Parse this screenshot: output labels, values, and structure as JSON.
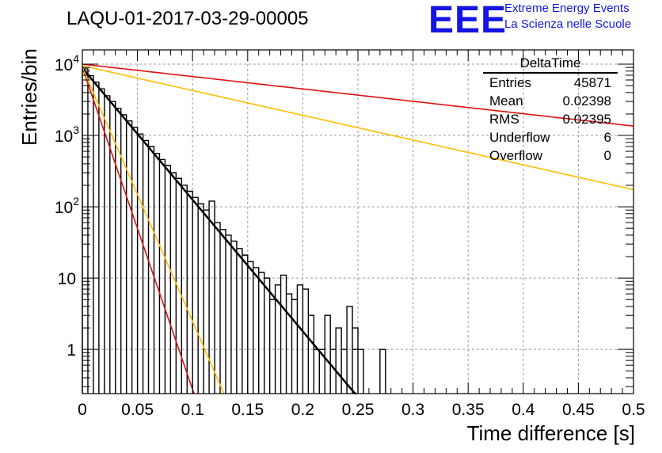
{
  "title": "LAQU-01-2017-03-29-00005",
  "logo": {
    "mark": "EEE",
    "line1": "Extreme Energy Events",
    "line2": "La Scienza nelle Scuole",
    "color": "#1414e6"
  },
  "stats_box": {
    "title": "DeltaTime",
    "rows": [
      {
        "label": "Entries",
        "value": "45871"
      },
      {
        "label": "Mean",
        "value": "0.02398"
      },
      {
        "label": "RMS",
        "value": "0.02395"
      },
      {
        "label": "Underflow",
        "value": "6"
      },
      {
        "label": "Overflow",
        "value": "0"
      }
    ]
  },
  "chart_data": {
    "type": "histogram",
    "xlabel": "Time difference [s]",
    "ylabel": "Entries/bin",
    "xlim": [
      0,
      0.5
    ],
    "ylim_log10": [
      -0.62,
      4.2
    ],
    "yscale": "log",
    "grid": true,
    "x_ticks": [
      "0",
      "0.05",
      "0.1",
      "0.15",
      "0.2",
      "0.25",
      "0.3",
      "0.35",
      "0.4",
      "0.45",
      "0.5"
    ],
    "y_ticks": [
      {
        "value": 10000,
        "base": "10",
        "exp": "4"
      },
      {
        "value": 1000,
        "base": "10",
        "exp": "3"
      },
      {
        "value": 100,
        "base": "10",
        "exp": "2"
      },
      {
        "value": 10,
        "base": "10",
        "exp": ""
      },
      {
        "value": 1,
        "base": "1",
        "exp": ""
      }
    ],
    "bin_width": 0.005,
    "bins_start": 0.0,
    "bin_counts": [
      8600,
      6900,
      5600,
      4500,
      3600,
      3000,
      2400,
      1950,
      1600,
      1300,
      1050,
      850,
      700,
      560,
      460,
      380,
      300,
      250,
      200,
      165,
      135,
      110,
      90,
      120,
      60,
      48,
      40,
      33,
      26,
      21,
      17,
      14,
      12,
      10,
      5,
      8,
      11,
      6,
      5,
      8,
      7,
      3,
      1,
      1,
      3,
      1,
      2,
      1,
      4,
      2,
      1,
      0,
      0,
      0,
      0,
      0,
      0,
      0,
      0,
      0,
      0,
      0,
      0,
      0,
      0,
      0,
      0,
      0,
      0,
      0,
      0,
      0,
      0,
      0,
      0,
      0,
      0,
      0,
      0,
      0,
      0,
      0,
      0,
      0,
      0,
      0,
      0,
      0,
      0,
      0,
      0,
      0,
      0,
      0,
      0,
      0,
      0,
      0,
      0,
      0
    ],
    "extra_bins": [
      {
        "x": 0.165,
        "count": 10
      },
      {
        "x": 0.215,
        "count": 1
      },
      {
        "x": 0.225,
        "count": 1
      },
      {
        "x": 0.235,
        "count": 1
      },
      {
        "x": 0.245,
        "count": 1
      },
      {
        "x": 0.27,
        "count": 1
      }
    ],
    "fits": [
      {
        "name": "fit",
        "color": "#000000",
        "amplitude": 8800,
        "slope_per_s": 42.5,
        "x_range": [
          0,
          0.26
        ],
        "width": 2.5
      },
      {
        "name": "slow-red",
        "color": "#e01010",
        "amplitude": 10000,
        "slope_per_s": 4.0,
        "x_range": [
          0,
          0.5
        ],
        "width": 1.6
      },
      {
        "name": "slow-orange",
        "color": "#ffbe00",
        "amplitude": 9500,
        "slope_per_s": 8.0,
        "x_range": [
          0,
          0.5
        ],
        "width": 1.6
      },
      {
        "name": "fast-red",
        "color": "#e01010",
        "amplitude": 9000,
        "slope_per_s": 104.0,
        "x_range": [
          0,
          0.12
        ],
        "width": 1.6
      },
      {
        "name": "fast-orange",
        "color": "#ffbe00",
        "amplitude": 9000,
        "slope_per_s": 82.0,
        "x_range": [
          0,
          0.15
        ],
        "width": 1.6
      }
    ]
  }
}
